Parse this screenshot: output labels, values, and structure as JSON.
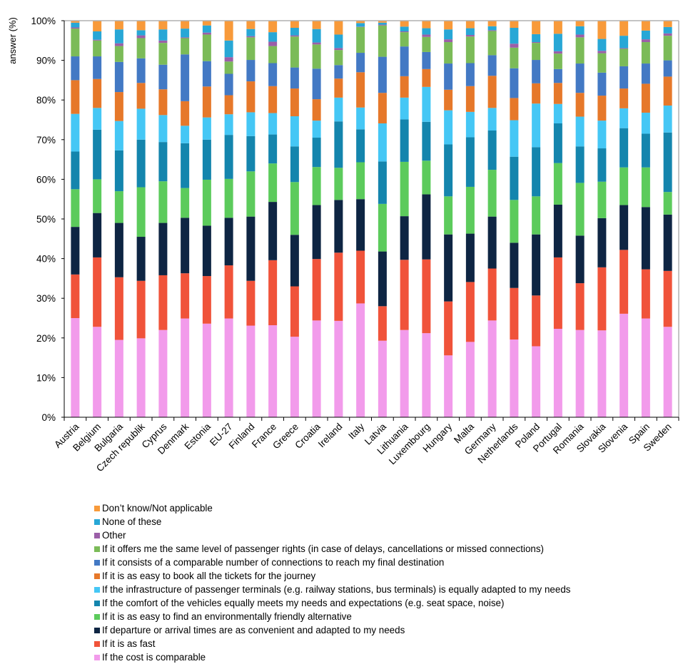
{
  "chart_data": {
    "type": "bar",
    "stacked": true,
    "title": "",
    "xlabel": "",
    "ylabel": "answer (%)",
    "ylim": [
      0,
      100
    ],
    "yticks": [
      "0%",
      "10%",
      "20%",
      "30%",
      "40%",
      "50%",
      "60%",
      "70%",
      "80%",
      "90%",
      "100%"
    ],
    "grid": false,
    "legend_position": "bottom",
    "categories": [
      "Austria",
      "Belgium",
      "Bulgaria",
      "Czech republik",
      "Cyprus",
      "Denmark",
      "Estonia",
      "EU-27",
      "Finland",
      "France",
      "Greece",
      "Croatia",
      "Ireland",
      "Italy",
      "Latvia",
      "Lithuania",
      "Luxembourg",
      "Hungary",
      "Malta",
      "Germany",
      "Netherlands",
      "Poland",
      "Portugal",
      "Romania",
      "Slovakia",
      "Slovenia",
      "Spain",
      "Sweden"
    ],
    "series": [
      {
        "name": "If the cost is comparable",
        "color": "#F29BEB",
        "values": [
          25.0,
          22.8,
          19.5,
          19.9,
          22.0,
          24.9,
          23.6,
          24.9,
          23.1,
          23.2,
          20.3,
          24.4,
          24.3,
          28.7,
          19.3,
          22.0,
          21.2,
          15.6,
          19.0,
          24.4,
          19.6,
          17.9,
          22.3,
          22.0,
          21.9,
          26.1,
          24.9,
          22.8
        ]
      },
      {
        "name": "If it is as fast",
        "color": "#F0533A",
        "values": [
          11.0,
          17.5,
          15.8,
          14.5,
          13.8,
          11.4,
          12.0,
          13.4,
          11.3,
          16.4,
          12.7,
          15.5,
          17.2,
          13.3,
          8.7,
          17.7,
          18.6,
          13.6,
          15.1,
          13.1,
          13.0,
          12.8,
          18.0,
          11.8,
          15.9,
          16.1,
          12.4,
          14.1
        ]
      },
      {
        "name": "If departure or arrival times are as convenient and adapted to my needs",
        "color": "#0E2543",
        "values": [
          12.0,
          11.2,
          13.7,
          11.1,
          13.2,
          14.0,
          12.7,
          12.0,
          16.2,
          14.7,
          13.0,
          13.6,
          13.3,
          13.0,
          13.8,
          11.0,
          16.4,
          16.9,
          12.2,
          13.1,
          11.4,
          15.4,
          13.3,
          12.0,
          12.4,
          11.3,
          15.7,
          14.2
        ]
      },
      {
        "name": "If it is as easy to find an environmentally friendly alternative",
        "color": "#5CCB5C",
        "values": [
          9.5,
          8.5,
          8.0,
          12.5,
          10.5,
          7.5,
          11.6,
          9.8,
          11.4,
          9.7,
          13.3,
          9.6,
          8.1,
          9.3,
          12.0,
          13.7,
          8.5,
          9.6,
          11.8,
          11.8,
          10.8,
          9.6,
          10.5,
          13.3,
          9.2,
          9.5,
          10.0,
          5.7
        ]
      },
      {
        "name": "If the comfort of the vehicles equally meets my needs and expectations (e.g. seat space, noise)",
        "color": "#1485AD",
        "values": [
          9.5,
          12.5,
          10.3,
          12.0,
          9.9,
          11.3,
          10.1,
          11.1,
          8.9,
          7.3,
          9.0,
          7.4,
          11.7,
          8.3,
          10.7,
          10.7,
          9.8,
          13.1,
          12.5,
          9.9,
          10.9,
          12.4,
          10.0,
          9.2,
          8.4,
          9.9,
          8.5,
          15.0
        ]
      },
      {
        "name": "If the infrastructure of passenger terminals (e.g. railway stations, bus terminals) is equally adapted to my needs",
        "color": "#45C7F5",
        "values": [
          9.5,
          5.5,
          7.4,
          7.8,
          6.8,
          4.4,
          5.6,
          5.2,
          6.0,
          5.4,
          7.6,
          4.3,
          6.0,
          5.5,
          9.6,
          5.5,
          8.8,
          8.6,
          6.4,
          5.7,
          9.2,
          11.0,
          4.9,
          7.5,
          7.0,
          5.0,
          5.3,
          6.8
        ]
      },
      {
        "name": "If it is as easy to book all the tickets for the journey",
        "color": "#E6782A",
        "values": [
          8.5,
          7.3,
          7.3,
          6.5,
          6.5,
          6.2,
          7.8,
          4.8,
          7.8,
          6.8,
          7.0,
          5.4,
          4.8,
          8.9,
          7.7,
          5.4,
          4.5,
          5.2,
          6.5,
          8.1,
          5.6,
          5.1,
          5.3,
          6.0,
          6.3,
          5.0,
          7.3,
          7.3
        ]
      },
      {
        "name": "If it consists of a comparable number of connections to reach my final destination",
        "color": "#4379C4",
        "values": [
          6.0,
          5.7,
          7.6,
          6.2,
          6.2,
          11.8,
          6.4,
          5.4,
          5.4,
          5.8,
          5.3,
          7.7,
          3.4,
          4.9,
          9.1,
          7.5,
          4.3,
          6.6,
          5.8,
          5.2,
          7.5,
          5.9,
          3.5,
          7.4,
          5.8,
          5.6,
          5.1,
          4.1
        ]
      },
      {
        "name": "If it offers me the same level of passenger rights (in case of delays, cancellations or missed connections)",
        "color": "#7BBB58",
        "values": [
          7.0,
          4.0,
          4.0,
          5.1,
          5.5,
          4.1,
          6.7,
          3.1,
          5.7,
          4.3,
          7.8,
          6.1,
          3.8,
          6.5,
          7.9,
          3.6,
          3.8,
          5.4,
          6.7,
          6.1,
          5.2,
          4.3,
          3.9,
          6.6,
          4.9,
          4.4,
          5.4,
          6.2
        ]
      },
      {
        "name": "Other",
        "color": "#9B5FA8",
        "values": [
          0.3,
          0.2,
          0.7,
          0.7,
          0.6,
          0.2,
          0.5,
          1.1,
          0.3,
          1.1,
          0.3,
          0.5,
          0.5,
          0.1,
          0.2,
          0.2,
          0.6,
          0.7,
          0.4,
          0.2,
          1.0,
          0.2,
          0.6,
          0.7,
          0.6,
          0.2,
          0.7,
          0.6
        ]
      },
      {
        "name": "None of these",
        "color": "#27A7D6",
        "values": [
          1.2,
          2.1,
          3.5,
          1.3,
          2.8,
          2.2,
          1.8,
          4.2,
          1.8,
          2.4,
          1.9,
          3.4,
          3.4,
          0.9,
          0.5,
          1.2,
          1.6,
          2.5,
          1.7,
          1.0,
          4.0,
          2.0,
          4.4,
          2.1,
          3.0,
          3.1,
          2.2,
          1.6
        ]
      },
      {
        "name": "Don't know/Not applicable",
        "color": "#F89A3A",
        "values": [
          0.5,
          2.7,
          2.2,
          2.4,
          2.2,
          2.0,
          1.2,
          5.0,
          2.1,
          2.9,
          1.8,
          2.1,
          3.5,
          0.6,
          0.5,
          1.5,
          1.9,
          2.2,
          1.9,
          1.4,
          1.8,
          3.4,
          3.3,
          1.4,
          4.6,
          3.8,
          2.5,
          1.6
        ]
      }
    ],
    "legend_order": [
      "Don’t know/Not applicable",
      "None of these",
      "Other",
      "If it offers me the same level of passenger rights (in case of delays, cancellations or missed connections)",
      "If it consists of a comparable number of connections to reach my final destination",
      "If it is as easy to book all the tickets for the journey",
      "If the infrastructure of passenger terminals (e.g. railway stations, bus terminals) is equally adapted to my needs",
      "If the comfort of the vehicles equally meets my needs and expectations (e.g. seat space, noise)",
      "If it is as easy to find an environmentally friendly alternative",
      "If departure or arrival times are as convenient and adapted to my needs",
      "If it is as fast",
      "If the cost is comparable"
    ]
  },
  "legend": {
    "items": [
      {
        "label": "Don’t know/Not applicable",
        "color": "#F89A3A"
      },
      {
        "label": "None of these",
        "color": "#27A7D6"
      },
      {
        "label": "Other",
        "color": "#9B5FA8"
      },
      {
        "label": "If it offers me the same level of passenger rights (in case of delays, cancellations or missed connections)",
        "color": "#7BBB58"
      },
      {
        "label": "If it consists of a comparable number of connections to reach my final destination",
        "color": "#4379C4"
      },
      {
        "label": "If it is as easy to book all the tickets for the journey",
        "color": "#E6782A"
      },
      {
        "label": "If the infrastructure of passenger terminals (e.g. railway stations, bus terminals) is equally adapted to my needs",
        "color": "#45C7F5"
      },
      {
        "label": "If the comfort of the vehicles equally meets my needs and expectations (e.g. seat space, noise)",
        "color": "#1485AD"
      },
      {
        "label": "If it is as easy to find an environmentally friendly alternative",
        "color": "#5CCB5C"
      },
      {
        "label": "If departure or arrival times are as convenient and adapted to my needs",
        "color": "#0E2543"
      },
      {
        "label": "If it is as fast",
        "color": "#F0533A"
      },
      {
        "label": "If the cost is comparable",
        "color": "#F29BEB"
      }
    ]
  }
}
